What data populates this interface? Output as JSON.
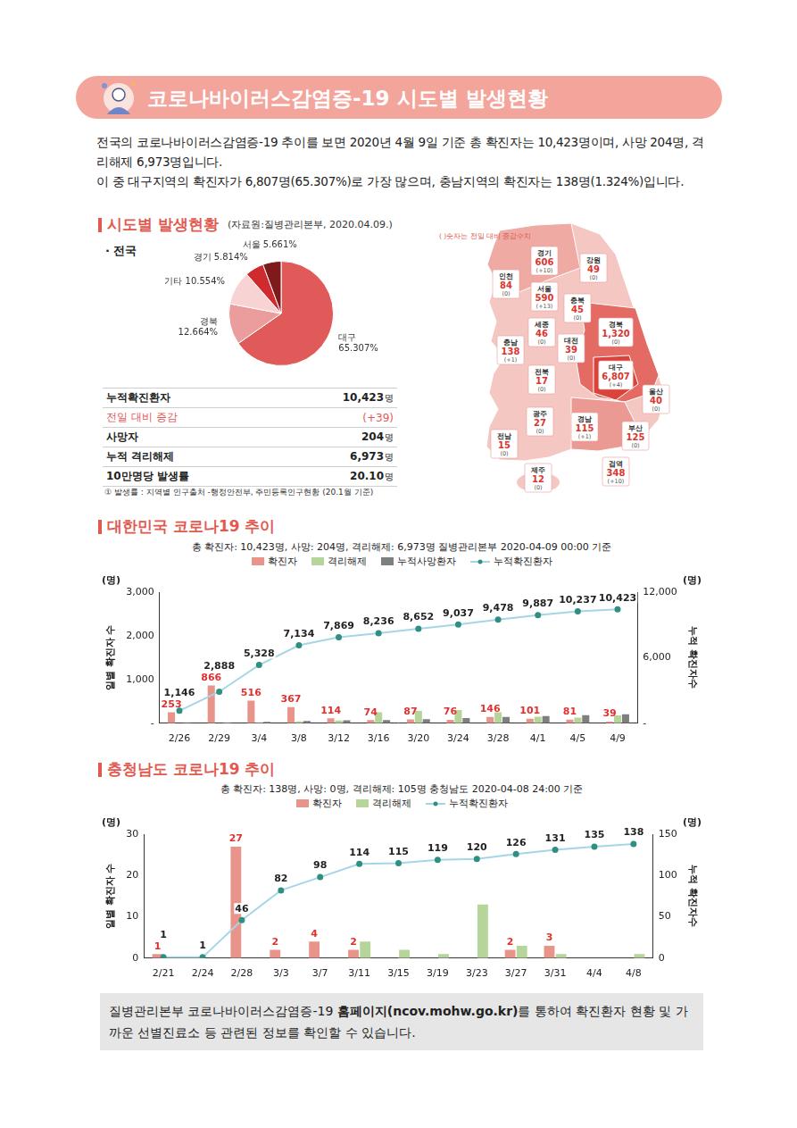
{
  "header": {
    "title": "코로나바이러스감염증-19 시도별 발생현황"
  },
  "intro": [
    "전국의 코로나바이러스감염증-19 추이를 보면 2020년 4월 9일 기준 총 확진자는 10,423명이며, 사망 204명, 격리해제 6,973명입니다.",
    "이 중 대구지역의 확진자가 6,807명(65.307%)로 가장 많으며, 충남지역의 확진자는 138명(1.324%)입니다."
  ],
  "sections": [
    {
      "title": "시도별 발생현황",
      "source": "(자료원:질병관리본부, 2020.04.09.)"
    },
    {
      "title": "대한민국 코로나19 추이"
    },
    {
      "title": "충청남도 코로나19 추이"
    }
  ],
  "pie_heading": "· 전국",
  "table": {
    "rows": [
      {
        "label": "누적확진환자",
        "value": "10,423",
        "unit": "명"
      },
      {
        "label": "전일 대비 증감",
        "value": "(+39)",
        "color": "#e05a5a"
      },
      {
        "label": "사망자",
        "value": "204",
        "unit": "명"
      },
      {
        "label": "누적 격리해제",
        "value": "6,973",
        "unit": "명"
      },
      {
        "label": "10만명당 발생률",
        "value": "20.10",
        "unit": "명"
      }
    ],
    "note": "① 발생률 : 지역별 인구출처 -행정안전부, 주민등록인구현황 (20.1월 기준)"
  },
  "map": {
    "note": "( )숫자는 전일 대비 증감수치",
    "regions": [
      {
        "name": "경기",
        "count": "606",
        "change": "(+10)"
      },
      {
        "name": "강원",
        "count": "49",
        "change": "(0)"
      },
      {
        "name": "인천",
        "count": "84",
        "change": "(0)"
      },
      {
        "name": "서울",
        "count": "590",
        "change": "(+13)"
      },
      {
        "name": "충북",
        "count": "45",
        "change": "(0)"
      },
      {
        "name": "세종",
        "count": "46",
        "change": "(0)"
      },
      {
        "name": "대전",
        "count": "39",
        "change": "(0)"
      },
      {
        "name": "경북",
        "count": "1,320",
        "change": "(0)"
      },
      {
        "name": "충남",
        "count": "138",
        "change": "(+1)"
      },
      {
        "name": "대구",
        "count": "6,807",
        "change": "(+4)"
      },
      {
        "name": "전북",
        "count": "17",
        "change": "(0)"
      },
      {
        "name": "울산",
        "count": "40",
        "change": "(0)"
      },
      {
        "name": "경남",
        "count": "115",
        "change": "(+1)"
      },
      {
        "name": "광주",
        "count": "27",
        "change": "(0)"
      },
      {
        "name": "부산",
        "count": "125",
        "change": "(0)"
      },
      {
        "name": "전남",
        "count": "15",
        "change": "(0)"
      },
      {
        "name": "제주",
        "count": "12",
        "change": "(0)"
      },
      {
        "name": "검역",
        "count": "348",
        "change": "(+10)"
      }
    ]
  },
  "chart_data": [
    {
      "type": "pie",
      "categories": [
        "대구",
        "경북",
        "기타",
        "경기",
        "서울"
      ],
      "values": [
        65.307,
        12.664,
        10.554,
        5.814,
        5.661
      ],
      "value_labels": [
        "65.307%",
        "12.664%",
        "10.554%",
        "5.814%",
        "5.661%"
      ],
      "colors": [
        "#e05a5a",
        "#eb9c9c",
        "#f7d3d3",
        "#cf2b2e",
        "#7e1a1c"
      ],
      "data_labels": true
    },
    {
      "type": "bar",
      "title": "총 확진자: 10,423명, 사망: 204명, 격리해제: 6,973명  질병관리본부 2020-04-09 00:00 기준",
      "y_label": "일별 확진자 수",
      "y2_label": "누적 확진자수",
      "y_unit": "(명)",
      "y2_unit": "(명)",
      "legend": "top",
      "grid": false,
      "categories": [
        "2/26",
        "2/29",
        "3/4",
        "3/8",
        "3/12",
        "3/16",
        "3/20",
        "3/24",
        "3/28",
        "4/1",
        "4/5",
        "4/9"
      ],
      "series": [
        {
          "name": "확진자",
          "type": "bar",
          "color": "#e8948a",
          "data_labels": true,
          "values": [
            253,
            866,
            516,
            367,
            114,
            74,
            87,
            76,
            146,
            101,
            81,
            39
          ]
        },
        {
          "name": "격리해제",
          "type": "bar",
          "color": "#b5d59b",
          "values": [
            0,
            0,
            10,
            40,
            60,
            250,
            280,
            300,
            250,
            150,
            130,
            180
          ]
        },
        {
          "name": "누적사망환자",
          "type": "bar",
          "color": "#7f7f7f",
          "values": [
            12,
            17,
            32,
            50,
            66,
            75,
            94,
            120,
            144,
            165,
            183,
            204
          ]
        },
        {
          "name": "누적확진환자",
          "type": "line",
          "axis": "y2",
          "color": "#a6d6e6",
          "marker": "circle",
          "data_labels": true,
          "values": [
            1146,
            2888,
            5328,
            7134,
            7869,
            8236,
            8652,
            9037,
            9478,
            9887,
            10237,
            10423
          ],
          "value_labels": [
            "1,146",
            "2,888",
            "5,328",
            "7,134",
            "7,869",
            "8,236",
            "8,652",
            "9,037",
            "9,478",
            "9,887",
            "10,237",
            "10,423"
          ]
        }
      ],
      "ylim": [
        0,
        3000
      ],
      "yticks": [
        {
          "value": 0,
          "label": "-"
        },
        {
          "value": 1000,
          "label": "1,000"
        },
        {
          "value": 2000,
          "label": "2,000"
        },
        {
          "value": 3000,
          "label": "3,000"
        }
      ],
      "y2lim": [
        0,
        12000
      ],
      "y2ticks": [
        {
          "value": 0,
          "label": "-"
        },
        {
          "value": 6000,
          "label": "6,000"
        },
        {
          "value": 12000,
          "label": "12,000"
        }
      ]
    },
    {
      "type": "bar",
      "title": "총 확진자: 138명, 사망: 0명, 격리해제: 105명  충청남도 2020-04-08 24:00 기준",
      "y_label": "일별 확진자 수",
      "y2_label": "누적 확진자수",
      "y_unit": "(명)",
      "y2_unit": "(명)",
      "legend": "top",
      "grid": false,
      "categories": [
        "2/21",
        "2/24",
        "2/28",
        "3/3",
        "3/7",
        "3/11",
        "3/15",
        "3/19",
        "3/23",
        "3/27",
        "3/31",
        "4/4",
        "4/8"
      ],
      "series": [
        {
          "name": "확진자",
          "type": "bar",
          "color": "#e8948a",
          "data_labels": true,
          "values": [
            1,
            null,
            27,
            2,
            4,
            2,
            null,
            null,
            null,
            2,
            3,
            null,
            null
          ]
        },
        {
          "name": "격리해제",
          "type": "bar",
          "color": "#b5d59b",
          "values": [
            null,
            null,
            null,
            null,
            null,
            4,
            2,
            1,
            13,
            3,
            1,
            null,
            1
          ]
        },
        {
          "name": "누적확진환자",
          "type": "line",
          "axis": "y2",
          "color": "#a6d6e6",
          "marker": "circle",
          "data_labels": true,
          "values": [
            1,
            1,
            46,
            82,
            98,
            114,
            115,
            119,
            120,
            126,
            131,
            135,
            138
          ]
        }
      ],
      "ylim": [
        0,
        30
      ],
      "yticks": [
        0,
        10,
        20,
        30
      ],
      "y2lim": [
        0,
        150
      ],
      "y2ticks": [
        0,
        50,
        100,
        150
      ]
    }
  ],
  "footer": {
    "parts": [
      {
        "text": "질병관리본부 코로나바이러스감염증-19 "
      },
      {
        "text": "홈페이지(ncov.mohw.go.kr)",
        "bold": true
      },
      {
        "text": "를 통하여 확진환자 현황 및 가까운 선별진료소 등 관련된 정보를 확인할 수 있습니다."
      }
    ]
  }
}
